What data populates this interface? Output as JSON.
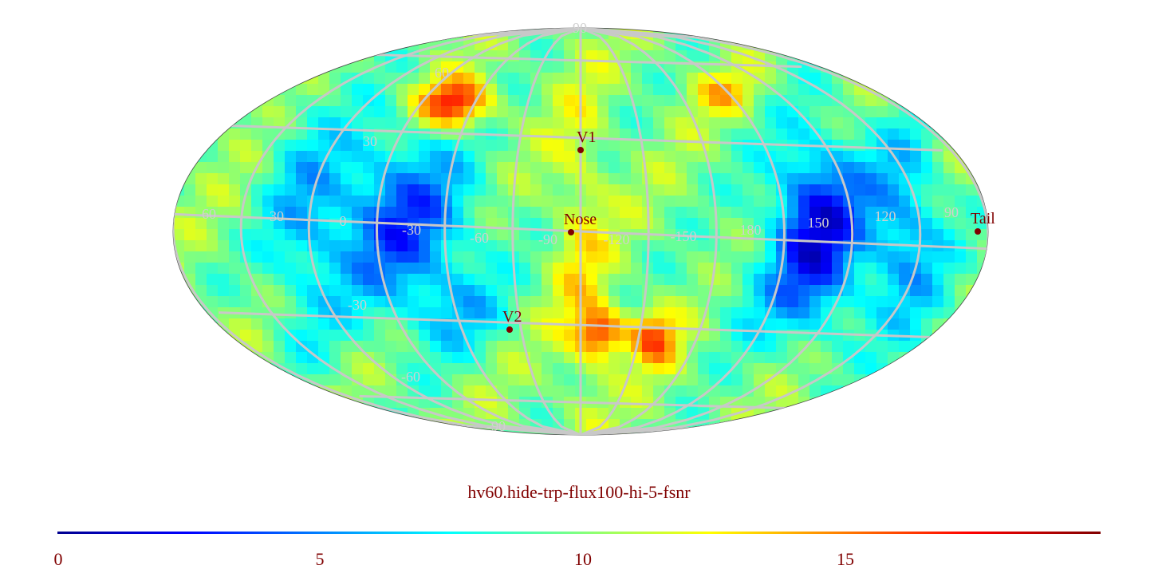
{
  "map": {
    "projection": "mollweide",
    "colormap": "jet",
    "color_range": [
      0,
      20
    ],
    "grid_color": "#c8c8c8",
    "longitude_labels": [
      "60",
      "30",
      "0",
      "-30",
      "-60",
      "-90",
      "-120",
      "-150",
      "180",
      "150",
      "120",
      "90"
    ],
    "latitude_labels": [
      "90",
      "60",
      "30",
      "-30",
      "-60",
      "-90"
    ],
    "markers": [
      {
        "label": "V1",
        "color": "#800000"
      },
      {
        "label": "Nose",
        "color": "#800000"
      },
      {
        "label": "V2",
        "color": "#800000"
      },
      {
        "label": "Tail",
        "color": "#800000"
      }
    ]
  },
  "title": "hv60.hide-trp-flux100-hi-5-fsnr",
  "colorbar": {
    "tick_labels": [
      "0",
      "5",
      "10",
      "15"
    ],
    "label_color": "#800000"
  }
}
